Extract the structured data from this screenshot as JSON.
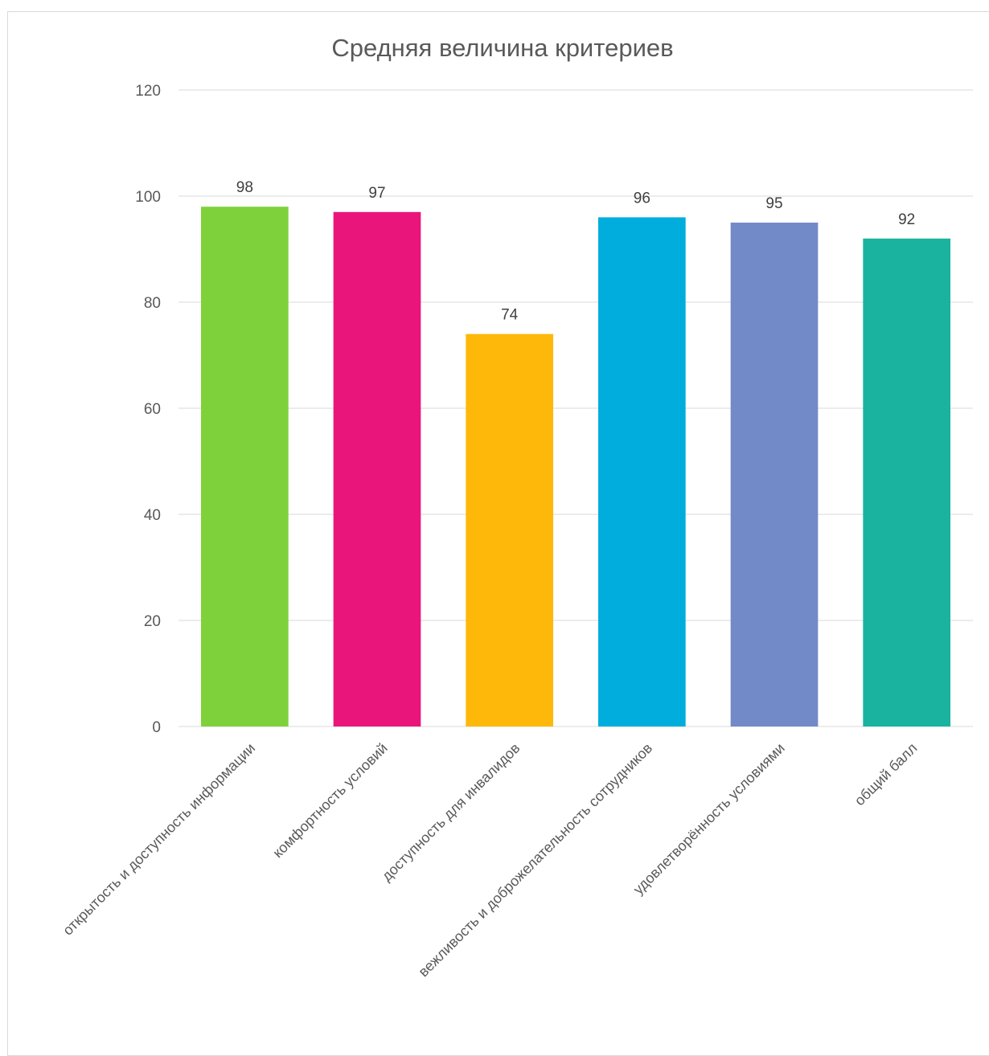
{
  "chart_data": {
    "type": "bar",
    "title": "Средняя величина критериев",
    "xlabel": "",
    "ylabel": "",
    "ylim": [
      0,
      120
    ],
    "yticks": [
      0,
      20,
      40,
      60,
      80,
      100,
      120
    ],
    "grid": true,
    "legend": "none",
    "categories": [
      "открытость и доступность информации",
      "комфортность условий",
      "доступность для инвалидов",
      "вежливость и доброжелательность сотрудников",
      "удовлетворённость условиями",
      "общий балл"
    ],
    "values": [
      98,
      97,
      74,
      96,
      95,
      92
    ],
    "value_labels": [
      "98",
      "97",
      "74",
      "96",
      "95",
      "92"
    ],
    "colors": [
      "#7fd13b",
      "#ea157a",
      "#feb80a",
      "#00addc",
      "#738ac8",
      "#1ab39f"
    ]
  }
}
